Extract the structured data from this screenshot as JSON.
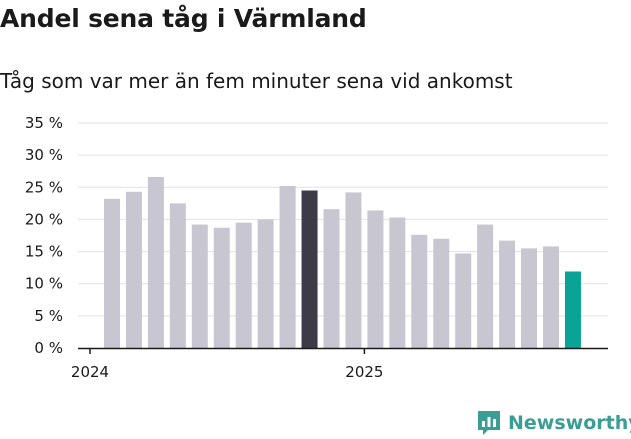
{
  "header": {
    "title": "Andel sena tåg i Värmland",
    "subtitle": "Tåg som var mer än fem minuter sena vid ankomst"
  },
  "brand": {
    "name": "Newsworthy",
    "icon": "newsworthy-logo-icon",
    "color": "#3a9e95"
  },
  "colors": {
    "default_bar": "#c8c6d1",
    "highlight_bar": "#3c3b47",
    "latest_bar": "#0aa397",
    "grid": "#e2e2e2",
    "axis": "#1a1a1a"
  },
  "chart_data": {
    "type": "bar",
    "title": "Andel sena tåg i Värmland",
    "subtitle": "Tåg som var mer än fem minuter sena vid ankomst",
    "xlabel": "",
    "ylabel": "",
    "ylim": [
      0,
      35
    ],
    "y_ticks": [
      0,
      5,
      10,
      15,
      20,
      25,
      30,
      35
    ],
    "y_tick_labels": [
      "0 %",
      "5 %",
      "10 %",
      "15 %",
      "20 %",
      "25 %",
      "30 %",
      "35 %"
    ],
    "x_tick_labels": [
      {
        "label": "2024",
        "index": 0
      },
      {
        "label": "2025",
        "index": 12
      }
    ],
    "grid": true,
    "values": [
      23.2,
      24.3,
      26.6,
      22.5,
      19.2,
      18.7,
      19.5,
      20.0,
      25.2,
      24.5,
      21.6,
      24.2,
      21.4,
      20.3,
      17.6,
      17.0,
      14.7,
      19.2,
      16.7,
      15.5,
      15.8,
      11.9
    ],
    "highlight_index": 9,
    "latest_index": 21
  }
}
